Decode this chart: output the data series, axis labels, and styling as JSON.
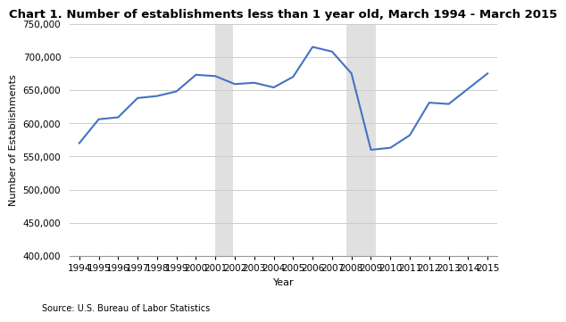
{
  "title": "Chart 1. Number of establishments less than 1 year old, March 1994 - March 2015",
  "xlabel": "Year",
  "ylabel": "Number of Establishments",
  "source": "Source: U.S. Bureau of Labor Statistics",
  "years": [
    1994,
    1995,
    1996,
    1997,
    1998,
    1999,
    2000,
    2001,
    2002,
    2003,
    2004,
    2005,
    2006,
    2007,
    2008,
    2009,
    2010,
    2011,
    2012,
    2013,
    2014,
    2015
  ],
  "values": [
    570000,
    606000,
    609000,
    638000,
    641000,
    648000,
    673000,
    671000,
    659000,
    661000,
    654000,
    670000,
    715000,
    708000,
    675000,
    560000,
    563000,
    582000,
    631000,
    629000,
    652000,
    675000
  ],
  "line_color": "#4472C4",
  "line_width": 1.5,
  "recession_bands": [
    {
      "xmin": 2001,
      "xmax": 2001.9
    },
    {
      "xmin": 2007.75,
      "xmax": 2009.25
    }
  ],
  "recession_color": "#e0e0e0",
  "ylim": [
    400000,
    750000
  ],
  "yticks": [
    400000,
    450000,
    500000,
    550000,
    600000,
    650000,
    700000,
    750000
  ],
  "grid_color": "#cccccc",
  "background_color": "#ffffff",
  "title_fontsize": 9.5,
  "title_bold": true,
  "axis_label_fontsize": 8,
  "tick_fontsize": 7.5,
  "source_fontsize": 7
}
